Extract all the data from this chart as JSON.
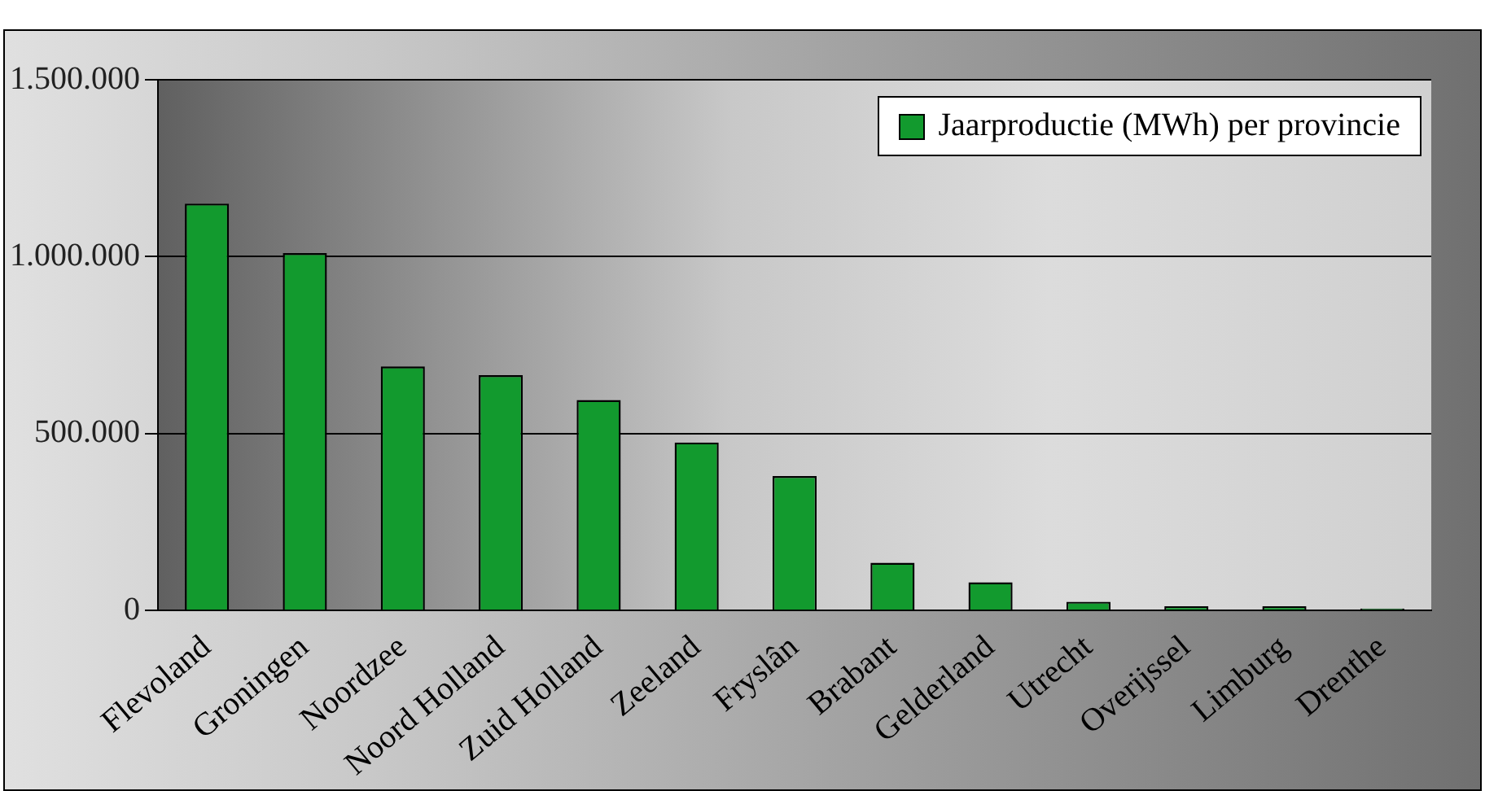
{
  "chart_data": {
    "type": "bar",
    "categories": [
      "Flevoland",
      "Groningen",
      "Noordzee",
      "Noord Holland",
      "Zuid Holland",
      "Zeeland",
      "Fryslân",
      "Brabant",
      "Gelderland",
      "Utrecht",
      "Overijssel",
      "Limburg",
      "Drenthe"
    ],
    "series": [
      {
        "name": "Jaarproductie (MWh) per provincie",
        "color": "#129a2e",
        "values": [
          1150000,
          1010000,
          690000,
          665000,
          595000,
          475000,
          380000,
          135000,
          80000,
          25000,
          12000,
          12000,
          6000
        ]
      }
    ],
    "ylim": [
      0,
      1500000
    ],
    "yticks": [
      {
        "value": 0,
        "label": "0"
      },
      {
        "value": 500000,
        "label": "500.000"
      },
      {
        "value": 1000000,
        "label": "1.000.000"
      },
      {
        "value": 1500000,
        "label": "1.500.000"
      }
    ],
    "grid": "y",
    "legend": "top right"
  }
}
